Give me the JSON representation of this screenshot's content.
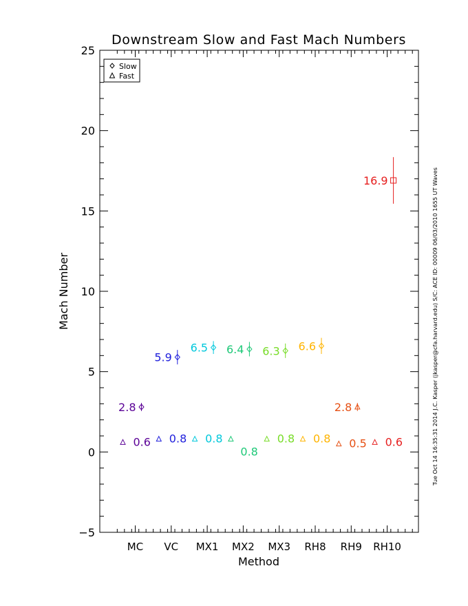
{
  "chart_data": {
    "type": "scatter",
    "title": "Downstream Slow and Fast Mach Numbers",
    "xlabel": "Method",
    "ylabel": "Mach Number",
    "categories": [
      "MC",
      "VC",
      "MX1",
      "MX2",
      "MX3",
      "RH8",
      "RH9",
      "RH10"
    ],
    "ylim": [
      -5,
      25
    ],
    "yticks": [
      -5,
      0,
      5,
      10,
      15,
      20,
      25
    ],
    "ytick_labels": [
      "−5",
      "0",
      "5",
      "10",
      "15",
      "20",
      "25"
    ],
    "yminor_step": 1,
    "legend": {
      "position": "top-left",
      "entries": [
        {
          "symbol": "diamond",
          "label": "Slow"
        },
        {
          "symbol": "triangle",
          "label": "Fast"
        }
      ]
    },
    "series": [
      {
        "name": "Slow",
        "symbol": "diamond",
        "values": [
          2.8,
          5.9,
          6.5,
          6.4,
          6.3,
          6.6,
          2.8,
          16.9
        ],
        "errors": [
          0.25,
          0.45,
          0.4,
          0.45,
          0.45,
          0.5,
          0.25,
          1.45
        ],
        "labels": [
          "2.8",
          "5.9",
          "6.5",
          "6.4",
          "6.3",
          "6.6",
          "2.8",
          "16.9"
        ],
        "point_symbols": [
          "diamond",
          "diamond",
          "diamond",
          "diamond",
          "diamond",
          "diamond",
          "triangle",
          "square"
        ]
      },
      {
        "name": "Fast",
        "symbol": "triangle",
        "values": [
          0.6,
          0.8,
          0.8,
          0.8,
          0.8,
          0.8,
          0.5,
          0.6
        ],
        "errors": [
          0.05,
          0.05,
          0.05,
          0.05,
          0.05,
          0.05,
          0.05,
          0.05
        ],
        "labels": [
          "0.6",
          "0.8",
          "0.8",
          "0.8",
          "0.8",
          "0.8",
          "0.5",
          "0.6"
        ]
      }
    ],
    "colors": [
      "#5a0096",
      "#1e1edc",
      "#00c8dc",
      "#1ec878",
      "#78dc28",
      "#ffb400",
      "#e65014",
      "#e61e1e"
    ],
    "footer": "Tue Oct 14 16:35:31 2014   J.C. Kasper (jkasper@cfa.harvard.edu)   S/C: ACE ID: 00009 06/03/2010   1655 UT Waves"
  }
}
